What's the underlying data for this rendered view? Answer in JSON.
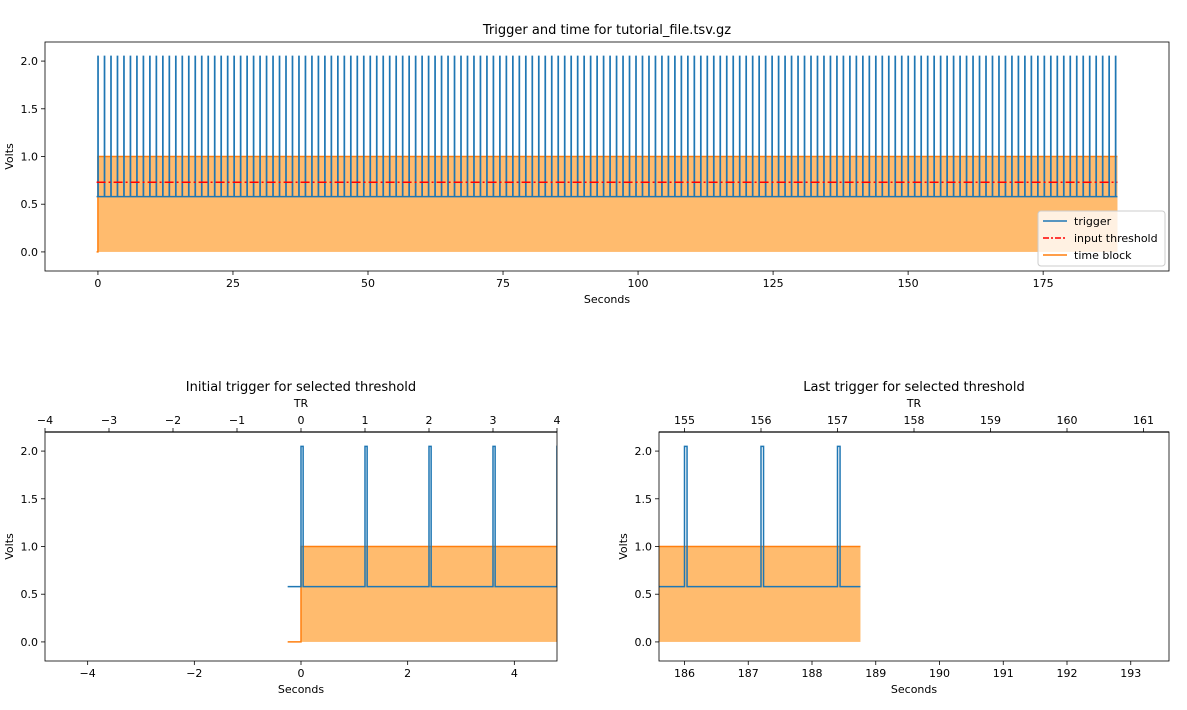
{
  "colors": {
    "trigger": "#1f77b4",
    "threshold": "#ff0000",
    "time_block": "#ff7f0e",
    "time_block_fill": "#ffbb6e"
  },
  "chart_data": [
    {
      "type": "line",
      "title": "Trigger and time for tutorial_file.tsv.gz",
      "xlabel": "Seconds",
      "ylabel": "Volts",
      "xlim": [
        -9.8,
        198.3
      ],
      "ylim": [
        -0.2,
        2.2
      ],
      "xticks": [
        0,
        25,
        50,
        75,
        100,
        125,
        150,
        175
      ],
      "yticks": [
        0.0,
        0.5,
        1.0,
        1.5,
        2.0
      ],
      "legend": {
        "placement": "lower-right",
        "entries": [
          "trigger",
          "input threshold",
          "time block"
        ]
      },
      "show_threshold": true
    },
    {
      "type": "line",
      "title": "Initial trigger for selected threshold",
      "xlabel": "Seconds",
      "ylabel": "Volts",
      "top_xlabel": "TR",
      "xlim": [
        -4.8,
        4.8
      ],
      "ylim": [
        -0.2,
        2.2
      ],
      "xticks": [
        -4,
        -2,
        0,
        2,
        4
      ],
      "top_xticks": [
        -4,
        -3,
        -2,
        -1,
        0,
        1,
        2,
        3,
        4
      ],
      "yticks": [
        0.0,
        0.5,
        1.0,
        1.5,
        2.0
      ]
    },
    {
      "type": "line",
      "title": "Last trigger for selected threshold",
      "xlabel": "Seconds",
      "ylabel": "Volts",
      "top_xlabel": "TR",
      "xlim": [
        185.6,
        193.6
      ],
      "ylim": [
        -0.2,
        2.2
      ],
      "xticks": [
        186,
        187,
        188,
        189,
        190,
        191,
        192,
        193
      ],
      "top_xticks": [
        155,
        156,
        157,
        158,
        159,
        160,
        161
      ],
      "yticks": [
        0.0,
        0.5,
        1.0,
        1.5,
        2.0
      ]
    }
  ],
  "signal": {
    "tr_seconds": 1.2,
    "n_triggers": 158,
    "pulse_width_s": 0.04,
    "trigger_low_v": 0.58,
    "trigger_high_v": 2.05,
    "recording_start_s": -0.25,
    "recording_end_s": 188.76,
    "input_threshold_v": 0.73,
    "time_block_start_s": 0,
    "time_block_end_s": 188.76,
    "time_block_v": 1.0
  }
}
